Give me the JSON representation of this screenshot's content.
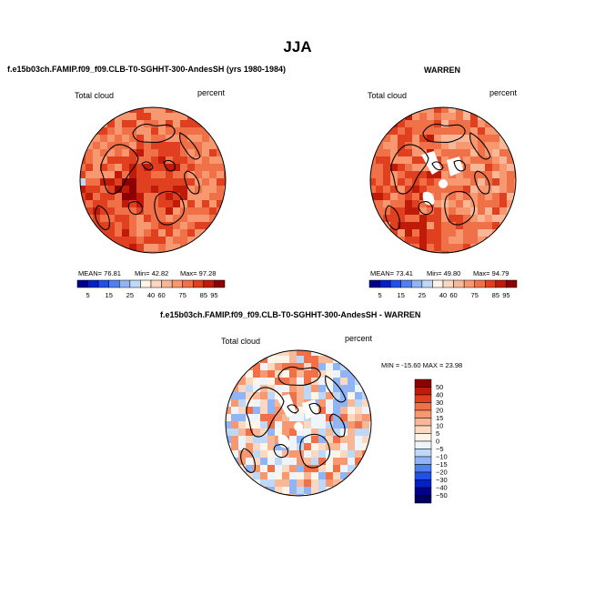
{
  "page": {
    "title": "JJA"
  },
  "chart_data": [
    {
      "type": "heatmap",
      "projection": "polar-stereographic-north",
      "title": "f.e15b03ch.FAMIP.f09_f09.CLB-T0-SGHHT-300-AndesSH (yrs 1980-1984)",
      "variable": "Total cloud",
      "units": "percent",
      "stats": {
        "mean_label": "MEAN=",
        "mean": "76.81",
        "min_label": "Min=",
        "min": "42.82",
        "max_label": "Max=",
        "max": "97.28"
      },
      "colorbar": {
        "orientation": "horizontal",
        "levels": [
          "5",
          "15",
          "25",
          "40",
          "60",
          "75",
          "85",
          "95"
        ],
        "colors": [
          "#00008b",
          "#0020c8",
          "#2050e8",
          "#5080f0",
          "#90b4f4",
          "#c0d8f8",
          "#fff4e8",
          "#fcd8c0",
          "#f8b898",
          "#f89870",
          "#f07048",
          "#e04020",
          "#c01a08",
          "#8b0000"
        ]
      }
    },
    {
      "type": "heatmap",
      "projection": "polar-stereographic-north",
      "title": "WARREN",
      "variable": "Total cloud",
      "units": "percent",
      "stats": {
        "mean_label": "MEAN=",
        "mean": "73.41",
        "min_label": "Min=",
        "min": "49.80",
        "max_label": "Max=",
        "max": "94.79"
      },
      "colorbar": {
        "orientation": "horizontal",
        "levels": [
          "5",
          "15",
          "25",
          "40",
          "60",
          "75",
          "85",
          "95"
        ],
        "colors": [
          "#00008b",
          "#0020c8",
          "#2050e8",
          "#5080f0",
          "#90b4f4",
          "#c0d8f8",
          "#fff4e8",
          "#fcd8c0",
          "#f8b898",
          "#f89870",
          "#f07048",
          "#e04020",
          "#c01a08",
          "#8b0000"
        ]
      }
    },
    {
      "type": "heatmap",
      "projection": "polar-stereographic-north",
      "title": "f.e15b03ch.FAMIP.f09_f09.CLB-T0-SGHHT-300-AndesSH - WARREN",
      "variable": "Total cloud",
      "units": "percent",
      "stats": {
        "text": "MIN = -15.60 MAX =  23.98"
      },
      "colorbar": {
        "orientation": "vertical",
        "levels": [
          "50",
          "40",
          "30",
          "20",
          "15",
          "10",
          "5",
          "0",
          "−5",
          "−10",
          "−15",
          "−20",
          "−30",
          "−40",
          "−50"
        ],
        "colors": [
          "#8b0000",
          "#c01a08",
          "#e04020",
          "#f07048",
          "#f89870",
          "#f8b898",
          "#fcd8c0",
          "#fff4e8",
          "#eef4fc",
          "#c0d8f8",
          "#90b4f4",
          "#5080f0",
          "#2050e8",
          "#0020c8",
          "#00008b",
          "#000060"
        ]
      }
    }
  ]
}
